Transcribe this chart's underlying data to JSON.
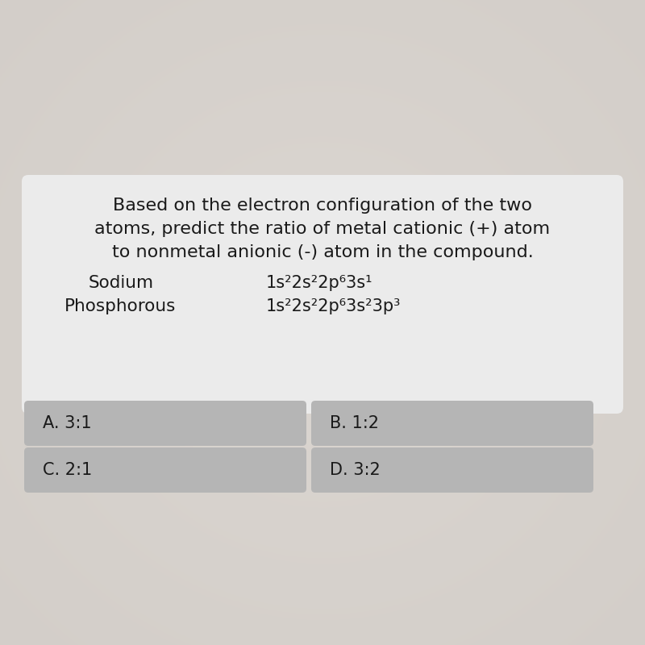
{
  "background_color": "#d4d0cc",
  "question_box_color": "#ebebeb",
  "question_text_line1": "Based on the electron configuration of the two",
  "question_text_line2": "atoms, predict the ratio of metal cationic (+) atom",
  "question_text_line3": "to nonmetal anionic (-) atom in the compound.",
  "sodium_label": "Sodium",
  "sodium_config": "1s²2s²2p⁶3s¹",
  "phosphorous_label": "Phosphorous",
  "phosphorous_config": "1s²2s²2p⁶3s²3p³",
  "answer_box_color": "#b5b5b5",
  "answers": [
    "A. 3:1",
    "B. 1:2",
    "C. 2:1",
    "D. 3:2"
  ],
  "text_color": "#1a1a1a",
  "question_fontsize": 16,
  "answer_fontsize": 15,
  "label_fontsize": 15.5,
  "config_fontsize": 15
}
